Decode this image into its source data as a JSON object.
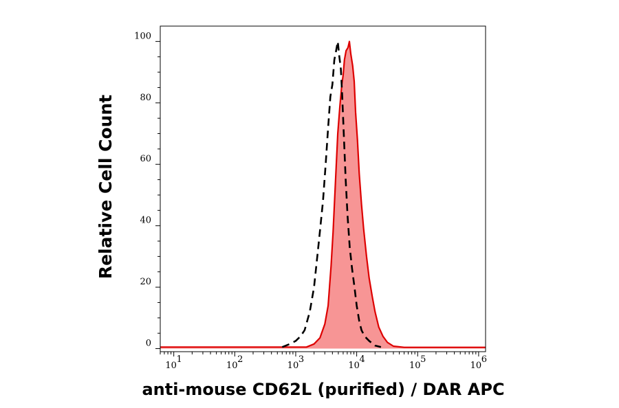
{
  "chart_data": {
    "type": "area",
    "xlabel": "anti-mouse CD62L (purified) / DAR APC",
    "ylabel": "Relative Cell Count",
    "x_scale": "log",
    "xlim": [
      6,
      1300000
    ],
    "ylim": [
      -1,
      105
    ],
    "x_ticks": [
      {
        "value": 10,
        "base": "10",
        "exp": "1"
      },
      {
        "value": 100,
        "base": "10",
        "exp": "2"
      },
      {
        "value": 1000,
        "base": "10",
        "exp": "3"
      },
      {
        "value": 10000,
        "base": "10",
        "exp": "4"
      },
      {
        "value": 100000,
        "base": "10",
        "exp": "5"
      },
      {
        "value": 1000000,
        "base": "10",
        "exp": "6"
      }
    ],
    "y_ticks": [
      "0",
      "20",
      "40",
      "60",
      "80",
      "100"
    ],
    "grid": false,
    "colors": {
      "stained_line": "#dd0000",
      "stained_fill": "#f79595",
      "control_line": "#000000"
    },
    "series": [
      {
        "style": "filled-red",
        "points": [
          [
            6,
            0.5
          ],
          [
            500,
            0.5
          ],
          [
            1500,
            0.5
          ],
          [
            2000,
            1.5
          ],
          [
            2500,
            3.5
          ],
          [
            3000,
            8
          ],
          [
            3400,
            14
          ],
          [
            3800,
            27
          ],
          [
            4100,
            38
          ],
          [
            4500,
            55
          ],
          [
            4900,
            70
          ],
          [
            5300,
            79
          ],
          [
            5700,
            86
          ],
          [
            6000,
            89
          ],
          [
            6300,
            94
          ],
          [
            6700,
            97
          ],
          [
            7200,
            98
          ],
          [
            7600,
            100
          ],
          [
            8000,
            96
          ],
          [
            8600,
            92
          ],
          [
            9100,
            87
          ],
          [
            9600,
            77
          ],
          [
            10300,
            68
          ],
          [
            11000,
            57
          ],
          [
            12000,
            47
          ],
          [
            13000,
            39
          ],
          [
            14500,
            30
          ],
          [
            16000,
            23
          ],
          [
            18000,
            17
          ],
          [
            20000,
            12
          ],
          [
            23000,
            7
          ],
          [
            27000,
            4
          ],
          [
            32000,
            2
          ],
          [
            40000,
            0.8
          ],
          [
            60000,
            0.4
          ],
          [
            1300000,
            0.4
          ]
        ]
      },
      {
        "style": "dashed-black",
        "points": [
          [
            600,
            0.5
          ],
          [
            800,
            1.5
          ],
          [
            1000,
            2.5
          ],
          [
            1200,
            4
          ],
          [
            1400,
            6
          ],
          [
            1700,
            12
          ],
          [
            2000,
            20
          ],
          [
            2400,
            35
          ],
          [
            2800,
            48
          ],
          [
            3100,
            60
          ],
          [
            3400,
            72
          ],
          [
            3700,
            82
          ],
          [
            4000,
            86
          ],
          [
            4300,
            94
          ],
          [
            4600,
            97
          ],
          [
            4900,
            100
          ],
          [
            5200,
            95
          ],
          [
            5500,
            91
          ],
          [
            5800,
            82
          ],
          [
            6200,
            68
          ],
          [
            6600,
            55
          ],
          [
            7100,
            43
          ],
          [
            7700,
            33
          ],
          [
            8400,
            26
          ],
          [
            9200,
            20
          ],
          [
            10000,
            14
          ],
          [
            11000,
            9
          ],
          [
            12000,
            6
          ],
          [
            13500,
            4
          ],
          [
            16000,
            2.5
          ],
          [
            20000,
            1
          ],
          [
            25000,
            0.5
          ]
        ]
      }
    ]
  }
}
